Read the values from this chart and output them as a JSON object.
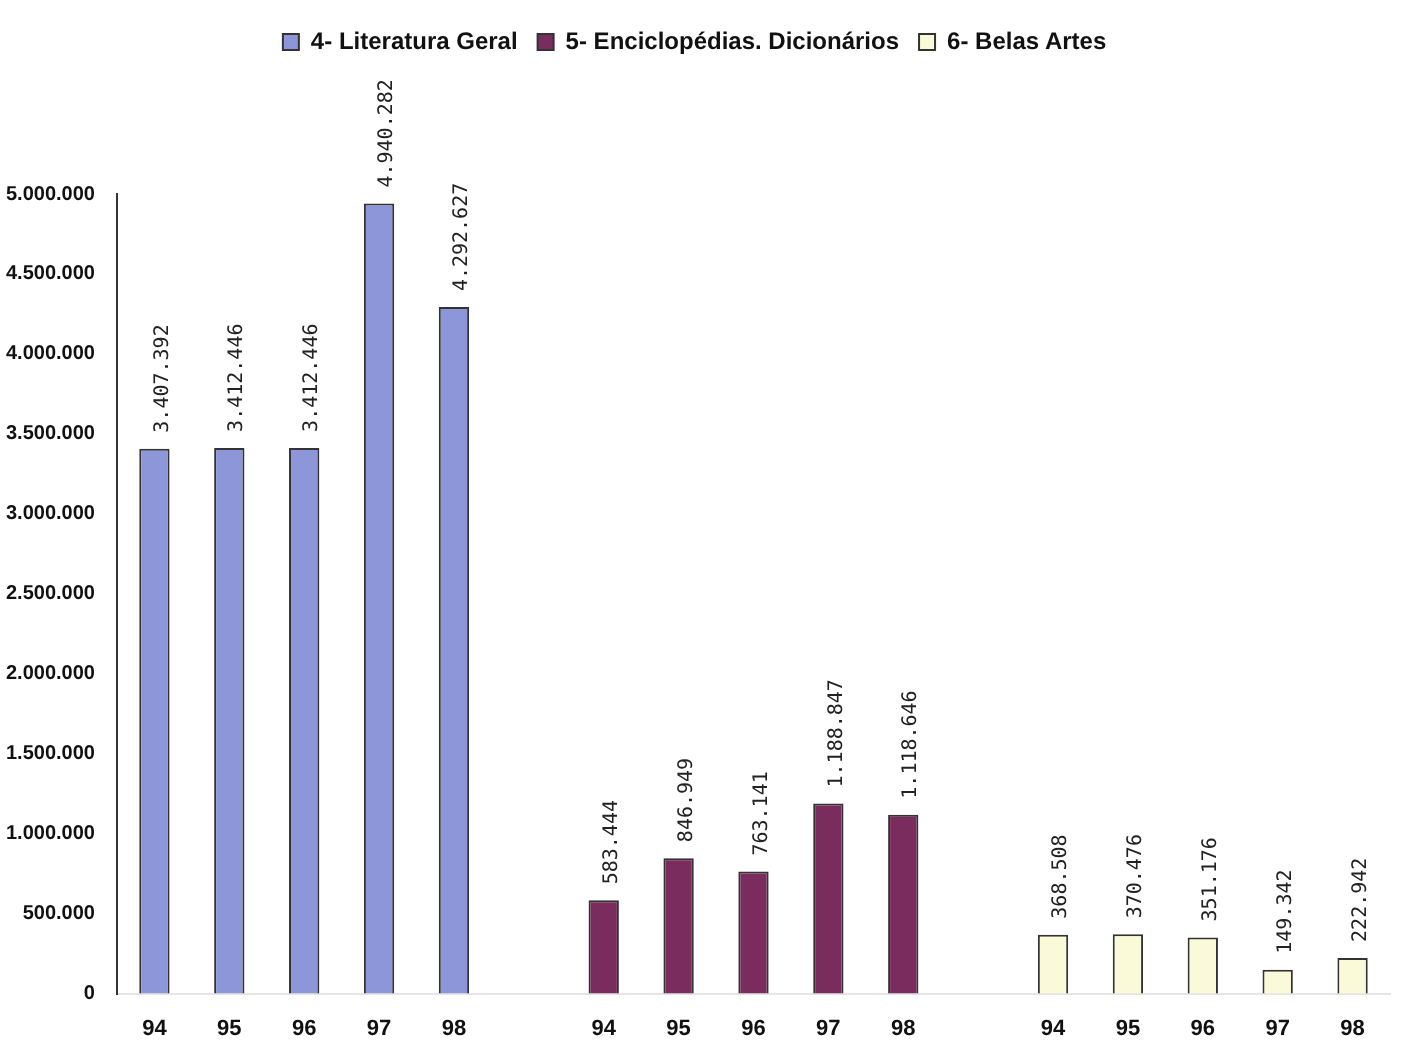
{
  "chart_data": {
    "type": "bar",
    "categories": [
      "94",
      "95",
      "96",
      "97",
      "98",
      null,
      "94",
      "95",
      "96",
      "97",
      "98",
      null,
      "94",
      "95",
      "96",
      "97",
      "98"
    ],
    "series": [
      {
        "name": "4- Literatura Geral",
        "color": "#8c96d8",
        "values": [
          3407392,
          3412446,
          3412446,
          4940282,
          4292627,
          null,
          null,
          null,
          null,
          null,
          null,
          null,
          null,
          null,
          null,
          null,
          null
        ],
        "value_labels": [
          "3.407.392",
          "3.412.446",
          "3.412.446",
          "4.940.282",
          "4.292.627",
          null,
          null,
          null,
          null,
          null,
          null,
          null,
          null,
          null,
          null,
          null,
          null
        ]
      },
      {
        "name": "5- Enciclopédias. Dicionários",
        "color": "#7a2c5e",
        "values": [
          null,
          null,
          null,
          null,
          null,
          null,
          583444,
          846949,
          763141,
          1188847,
          1118646,
          null,
          null,
          null,
          null,
          null,
          null
        ],
        "value_labels": [
          null,
          null,
          null,
          null,
          null,
          null,
          "583.444",
          "846.949",
          "763.141",
          "1.188.847",
          "1.118.646",
          null,
          null,
          null,
          null,
          null,
          null
        ]
      },
      {
        "name": "6- Belas Artes",
        "color": "#fafad8",
        "values": [
          null,
          null,
          null,
          null,
          null,
          null,
          null,
          null,
          null,
          null,
          null,
          null,
          368508,
          370476,
          351176,
          149342,
          222942
        ],
        "value_labels": [
          null,
          null,
          null,
          null,
          null,
          null,
          null,
          null,
          null,
          null,
          null,
          null,
          "368.508",
          "370.476",
          "351.176",
          "149.342",
          "222.942"
        ]
      }
    ],
    "ylim": [
      0,
      5000000
    ],
    "yticks": [
      0,
      {
        "value": 500000,
        "label": "500.000"
      },
      {
        "value": 1000000,
        "label": "1.000.000"
      },
      {
        "value": 1500000,
        "label": "1.500.000"
      },
      {
        "value": 2000000,
        "label": "2.000.000"
      },
      {
        "value": 2500000,
        "label": "2.500.000"
      },
      {
        "value": 3000000,
        "label": "3.000.000"
      },
      {
        "value": 3500000,
        "label": "3.500.000"
      },
      {
        "value": 4000000,
        "label": "4.000.000"
      },
      {
        "value": 4500000,
        "label": "4.500.000"
      },
      {
        "value": 5000000,
        "label": "5.000.000"
      }
    ],
    "grid": false,
    "legend": "top"
  }
}
